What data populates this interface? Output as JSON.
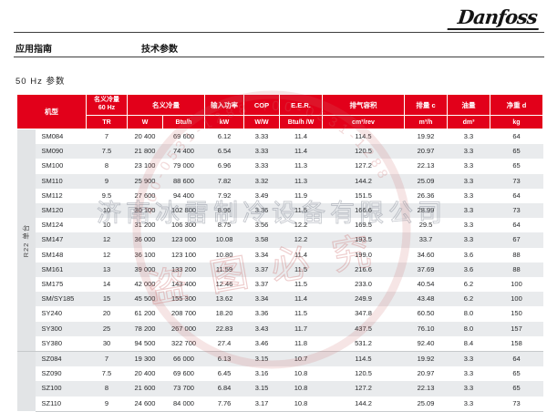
{
  "brand": {
    "logo_text": "Danfoss"
  },
  "nav": {
    "left": "应用指南",
    "right": "技术参数"
  },
  "section": {
    "title": "50 Hz 参数"
  },
  "watermark": {
    "company": "济南冰雷制冷设备有限公司",
    "stamp": "盗图必究",
    "phone_arc": "400-0531-1288",
    "tint": "#cd6e6e"
  },
  "table": {
    "accent_color": "#e2001a",
    "header": {
      "model": "机型",
      "cap60_l1": "名义冷量",
      "cap60_l2": "60 Hz",
      "cap": "名义冷量",
      "power": "输入功率",
      "cop": "COP",
      "eer": "E.E.R.",
      "disp": "排气容积",
      "swept": "排量 c",
      "oil": "油量",
      "weight": "净重 d"
    },
    "units": {
      "tr": "TR",
      "w": "W",
      "btuh": "Btu/h",
      "kw": "kW",
      "ww": "W/W",
      "btuhw": "Btu/h /W",
      "cm3rev": "cm³/rev",
      "m3h": "m³/h",
      "dm3": "dm³",
      "kg": "kg"
    },
    "groups": [
      {
        "label": "R22 单台",
        "rows": [
          [
            "SM084",
            "7",
            "20 400",
            "69 600",
            "6.12",
            "3.33",
            "11.4",
            "114.5",
            "19.92",
            "3.3",
            "64"
          ],
          [
            "SM090",
            "7.5",
            "21 800",
            "74 400",
            "6.54",
            "3.33",
            "11.4",
            "120.5",
            "20.97",
            "3.3",
            "65"
          ],
          [
            "SM100",
            "8",
            "23 100",
            "79 000",
            "6.96",
            "3.33",
            "11.3",
            "127.2",
            "22.13",
            "3.3",
            "65"
          ],
          [
            "SM110",
            "9",
            "25 900",
            "88 600",
            "7.82",
            "3.32",
            "11.3",
            "144.2",
            "25.09",
            "3.3",
            "73"
          ],
          [
            "SM112",
            "9.5",
            "27 600",
            "94 400",
            "7.92",
            "3.49",
            "11.9",
            "151.5",
            "26.36",
            "3.3",
            "64"
          ],
          [
            "SM120",
            "10",
            "30 100",
            "102 800",
            "8.96",
            "3.36",
            "11.5",
            "166.6",
            "28.99",
            "3.3",
            "73"
          ],
          [
            "SM124",
            "10",
            "31 200",
            "106 300",
            "8.75",
            "3.56",
            "12.2",
            "169.5",
            "29.5",
            "3.3",
            "64"
          ],
          [
            "SM147",
            "12",
            "36 000",
            "123 000",
            "10.08",
            "3.58",
            "12.2",
            "193.5",
            "33.7",
            "3.3",
            "67"
          ],
          [
            "SM148",
            "12",
            "36 100",
            "123 100",
            "10.80",
            "3.34",
            "11.4",
            "199.0",
            "34.60",
            "3.6",
            "88"
          ],
          [
            "SM161",
            "13",
            "39 000",
            "133 200",
            "11.59",
            "3.37",
            "11.5",
            "216.6",
            "37.69",
            "3.6",
            "88"
          ],
          [
            "SM175",
            "14",
            "42 000",
            "143 400",
            "12.46",
            "3.37",
            "11.5",
            "233.0",
            "40.54",
            "6.2",
            "100"
          ],
          [
            "SM/SY185",
            "15",
            "45 500",
            "155 300",
            "13.62",
            "3.34",
            "11.4",
            "249.9",
            "43.48",
            "6.2",
            "100"
          ],
          [
            "SY240",
            "20",
            "61 200",
            "208 700",
            "18.20",
            "3.36",
            "11.5",
            "347.8",
            "60.50",
            "8.0",
            "150"
          ],
          [
            "SY300",
            "25",
            "78 200",
            "267 000",
            "22.83",
            "3.43",
            "11.7",
            "437.5",
            "76.10",
            "8.0",
            "157"
          ],
          [
            "SY380",
            "30",
            "94 500",
            "322 700",
            "27.4",
            "3.46",
            "11.8",
            "531.2",
            "92.40",
            "8.4",
            "158"
          ]
        ]
      },
      {
        "label": "",
        "rows": [
          [
            "SZ084",
            "7",
            "19 300",
            "66 000",
            "6.13",
            "3.15",
            "10.7",
            "114.5",
            "19.92",
            "3.3",
            "64"
          ],
          [
            "SZ090",
            "7.5",
            "20 400",
            "69 600",
            "6.45",
            "3.16",
            "10.8",
            "120.5",
            "20.97",
            "3.3",
            "65"
          ],
          [
            "SZ100",
            "8",
            "21 600",
            "73 700",
            "6.84",
            "3.15",
            "10.8",
            "127.2",
            "22.13",
            "3.3",
            "65"
          ],
          [
            "SZ110",
            "9",
            "24 600",
            "84 000",
            "7.76",
            "3.17",
            "10.8",
            "144.2",
            "25.09",
            "3.3",
            "73"
          ]
        ]
      }
    ]
  }
}
